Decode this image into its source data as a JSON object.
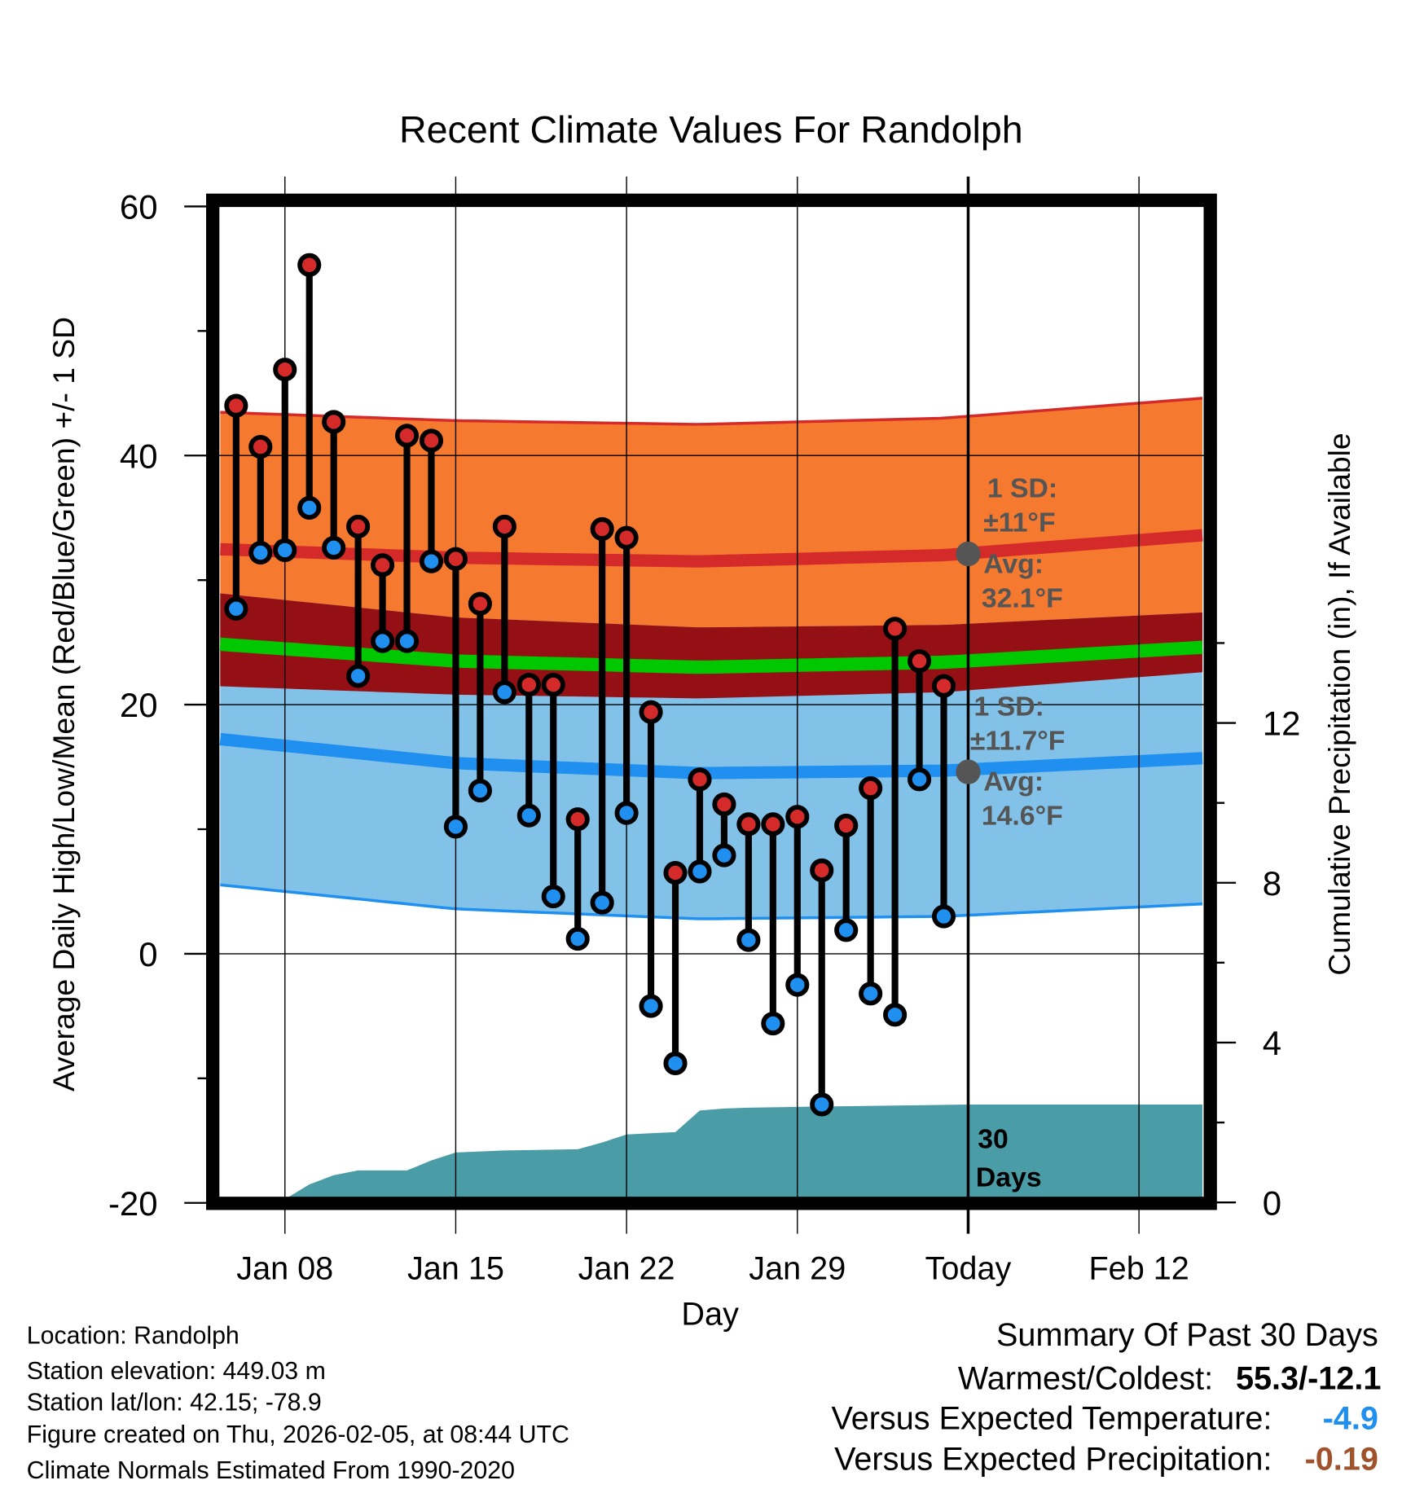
{
  "chart_data": {
    "type": "line",
    "title": "Recent Climate Values For Randolph",
    "xlabel": "Day",
    "ylabel": "Average Daily High/Low/Mean (Red/Blue/Green) +/- 1 SD",
    "y2label": "Cumulative Precipitation (in), If Available",
    "ylim": [
      -20,
      60
    ],
    "y2lim": [
      0,
      15.6
    ],
    "yticks": [
      "60",
      "40",
      "20",
      "0",
      "-20"
    ],
    "yticks_values": [
      60,
      40,
      20,
      0,
      -20
    ],
    "y2ticks": [
      "12",
      "8",
      "4",
      "0"
    ],
    "y2ticks_values": [
      12,
      8,
      4,
      0
    ],
    "xticks": [
      "Jan 08",
      "Jan 15",
      "Jan 22",
      "Jan 29",
      "Today",
      "Feb 12"
    ],
    "xticks_day_offset": [
      3,
      10,
      17,
      24,
      31,
      38
    ],
    "x_origin": "Jan 05",
    "grid": true,
    "days": [
      "Jan 06",
      "Jan 07",
      "Jan 08",
      "Jan 09",
      "Jan 10",
      "Jan 11",
      "Jan 12",
      "Jan 13",
      "Jan 14",
      "Jan 15",
      "Jan 16",
      "Jan 17",
      "Jan 18",
      "Jan 19",
      "Jan 20",
      "Jan 21",
      "Jan 22",
      "Jan 23",
      "Jan 24",
      "Jan 25",
      "Jan 26",
      "Jan 27",
      "Jan 28",
      "Jan 29",
      "Jan 30",
      "Jan 31",
      "Feb 01",
      "Feb 02",
      "Feb 03",
      "Feb 04"
    ],
    "series": [
      {
        "name": "Daily High",
        "color": "#d42a2a",
        "values": [
          44.0,
          40.7,
          46.9,
          55.3,
          42.7,
          34.3,
          31.2,
          41.6,
          41.2,
          31.7,
          28.1,
          34.3,
          21.6,
          21.6,
          10.8,
          34.1,
          33.4,
          19.4,
          6.5,
          14.0,
          12.0,
          10.4,
          10.4,
          11.0,
          6.7,
          10.3,
          13.3,
          26.1,
          23.5,
          21.5
        ]
      },
      {
        "name": "Daily Low",
        "color": "#1f8ff0",
        "values": [
          27.7,
          32.2,
          32.4,
          35.8,
          32.6,
          22.3,
          25.1,
          25.1,
          31.5,
          10.2,
          13.1,
          21.0,
          11.1,
          4.6,
          1.2,
          4.1,
          11.3,
          -4.2,
          -8.8,
          6.6,
          7.9,
          1.1,
          -5.6,
          -2.5,
          -12.1,
          1.9,
          -3.2,
          -4.9,
          14.0,
          3.0
        ]
      }
    ],
    "normals": {
      "day_offset": [
        0,
        10,
        20,
        30,
        40.6
      ],
      "high_avg": [
        32.5,
        31.8,
        31.5,
        32.0,
        33.6
      ],
      "high_sd": 11,
      "low_avg": [
        17.3,
        15.3,
        14.5,
        14.7,
        15.7
      ],
      "low_sd": 11.7,
      "mean": [
        24.9,
        23.5,
        23.0,
        23.4,
        24.6
      ]
    },
    "precip": {
      "color": "#4a9da6",
      "day_offset": [
        0.3,
        2,
        3,
        4,
        5,
        6,
        7,
        8,
        9,
        10,
        12,
        14,
        15,
        16,
        17,
        18,
        19,
        20,
        21,
        22,
        25,
        31,
        40.6
      ],
      "values": [
        0,
        0.08,
        0.08,
        0.45,
        0.68,
        0.8,
        0.8,
        0.8,
        1.05,
        1.25,
        1.3,
        1.32,
        1.33,
        1.5,
        1.7,
        1.73,
        1.76,
        2.3,
        2.35,
        2.37,
        2.4,
        2.45,
        2.45
      ]
    },
    "annotations": {
      "high_sd": "1 SD:",
      "high_sd_value": "±11°F",
      "high_avg": "Avg:",
      "high_avg_value": "32.1°F",
      "low_sd": "1 SD:",
      "low_sd_value": "±11.7°F",
      "low_avg": "Avg:",
      "low_avg_value": "14.6°F",
      "days_label": "30",
      "days_label2": "Days"
    }
  },
  "footer": {
    "location": "Location: Randolph",
    "elevation": "Station elevation: 449.03 m",
    "latlon": "Station lat/lon: 42.15; -78.9",
    "created": "Figure created on Thu, 2026-02-05, at 08:44 UTC",
    "normals": "Climate Normals Estimated From 1990-2020"
  },
  "summary": {
    "title": "Summary Of Past 30 Days",
    "warmest_label": "Warmest/Coldest:",
    "warmest_value": "55.3/-12.1",
    "temp_label": "Versus Expected Temperature:",
    "temp_value": "-4.9",
    "temp_color": "#1f8ff0",
    "precip_label": "Versus Expected Precipitation:",
    "precip_value": "-0.19",
    "precip_color": "#a0522d"
  }
}
